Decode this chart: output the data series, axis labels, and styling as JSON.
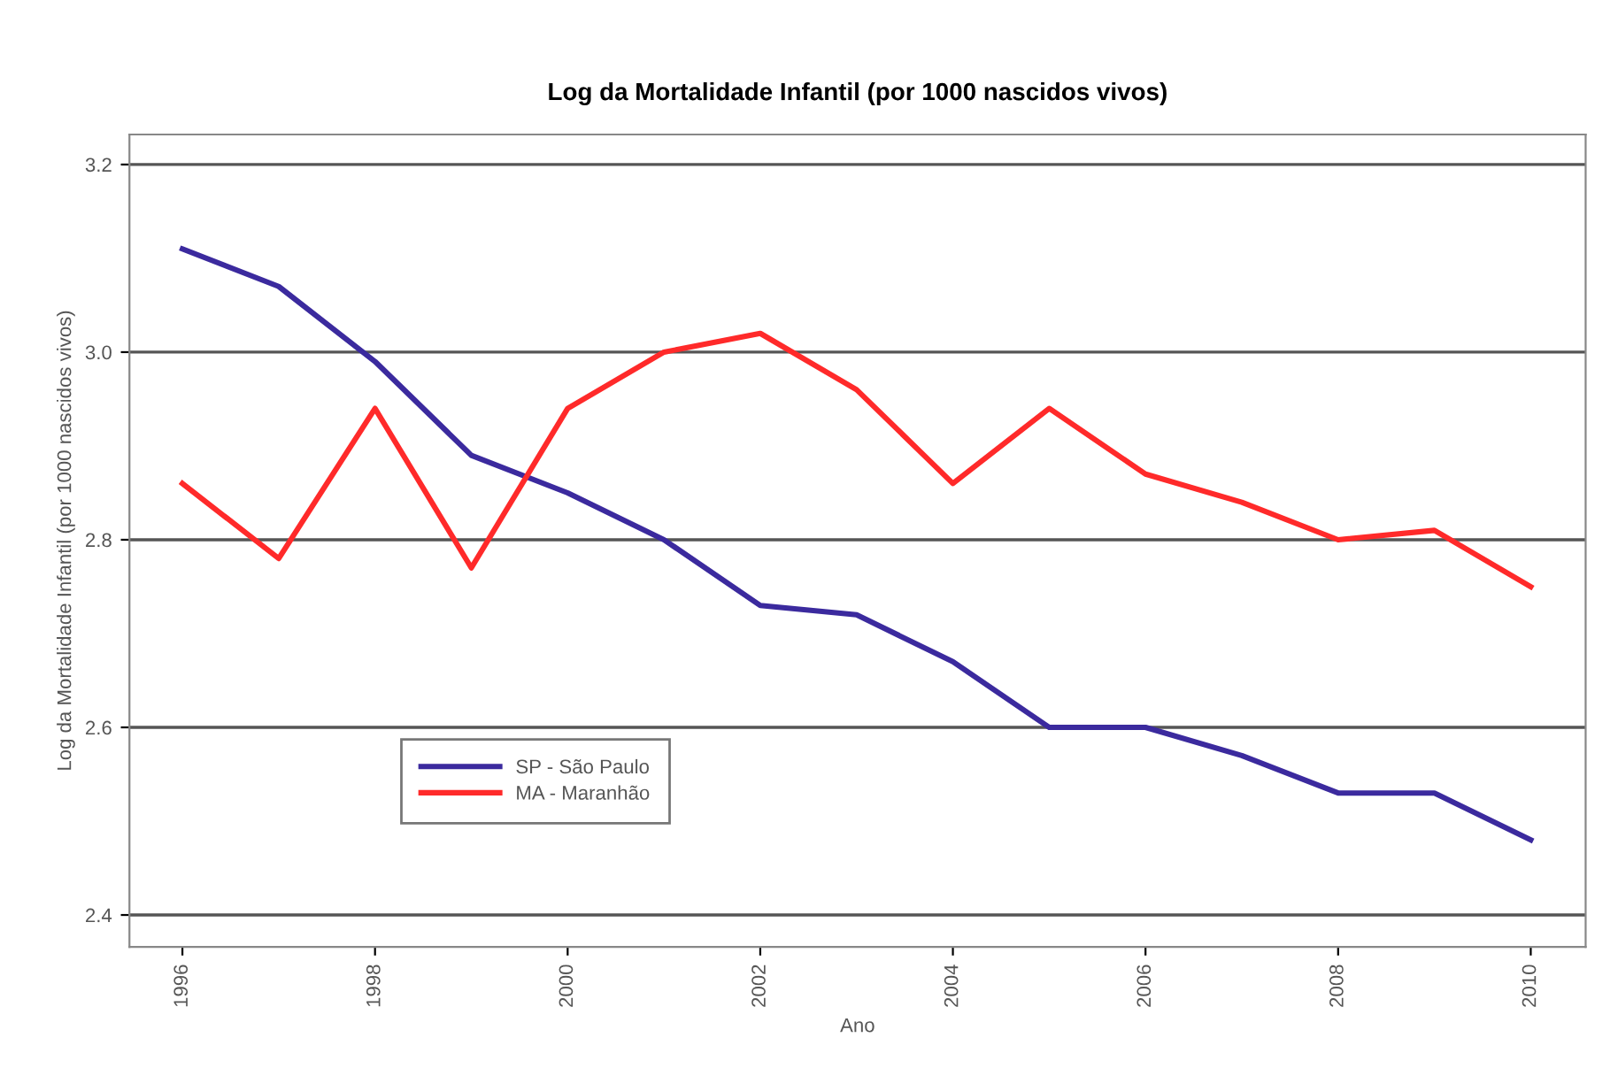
{
  "chart_data": {
    "type": "line",
    "title": "Log da Mortalidade Infantil (por 1000 nascidos vivos)",
    "xlabel": "Ano",
    "ylabel": "Log da Mortalidade Infantil (por 1000 nascidos vivos)",
    "x": [
      1996,
      1997,
      1998,
      1999,
      2000,
      2001,
      2002,
      2003,
      2004,
      2005,
      2006,
      2007,
      2008,
      2009,
      2010
    ],
    "series": [
      {
        "name": "SP - São Paulo",
        "color": "#3b2a9e",
        "values": [
          3.11,
          3.07,
          2.99,
          2.89,
          2.85,
          2.8,
          2.73,
          2.72,
          2.67,
          2.6,
          2.6,
          2.57,
          2.53,
          2.53,
          2.48
        ]
      },
      {
        "name": "MA - Maranhão",
        "color": "#ff2a2a",
        "values": [
          2.86,
          2.78,
          2.94,
          2.77,
          2.94,
          3.0,
          3.02,
          2.96,
          2.86,
          2.94,
          2.87,
          2.84,
          2.8,
          2.81,
          2.75
        ]
      }
    ],
    "xlim": [
      1995.45,
      2010.57
    ],
    "ylim": [
      2.366,
      3.232
    ],
    "xticks": [
      1996,
      1998,
      2000,
      2002,
      2004,
      2006,
      2008,
      2010
    ],
    "yticks": [
      2.4,
      2.6,
      2.8,
      {
        "value": 3.0,
        "label": "3.0"
      },
      3.2
    ],
    "grid": "y",
    "legend": "bottom left",
    "line_style": "solid",
    "marker": "none"
  }
}
